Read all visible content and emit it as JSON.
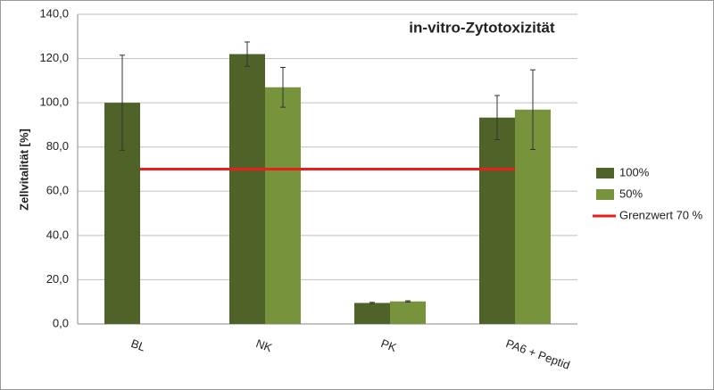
{
  "chart_data": {
    "type": "bar",
    "title": "in-vitro-Zytotoxizität",
    "y_label": "Zellvitalität [%]",
    "categories": [
      "BL",
      "NK",
      "PK",
      "PA6 + Peptid"
    ],
    "series": [
      {
        "name": "100%",
        "color": "#4f6228",
        "values": [
          100,
          122,
          9.5,
          93.3
        ],
        "errors": [
          21.5,
          5.5,
          0.3,
          10
        ]
      },
      {
        "name": "50%",
        "color": "#77933c",
        "values": [
          null,
          107,
          10.2,
          96.9
        ],
        "errors": [
          null,
          9,
          0.3,
          18
        ]
      }
    ],
    "threshold": {
      "name": "Grenzwert 70 %",
      "value": 70,
      "color": "#e8201c"
    },
    "ylim": [
      0,
      140
    ],
    "yticks": [
      {
        "value": 0,
        "label": "0,0"
      },
      {
        "value": 20,
        "label": "20,0"
      },
      {
        "value": 40,
        "label": "40,0"
      },
      {
        "value": 60,
        "label": "60,0"
      },
      {
        "value": 80,
        "label": "80,0"
      },
      {
        "value": 100,
        "label": "100,0"
      },
      {
        "value": 120,
        "label": "120,0"
      },
      {
        "value": 140,
        "label": "140,0"
      }
    ],
    "grid": true
  }
}
